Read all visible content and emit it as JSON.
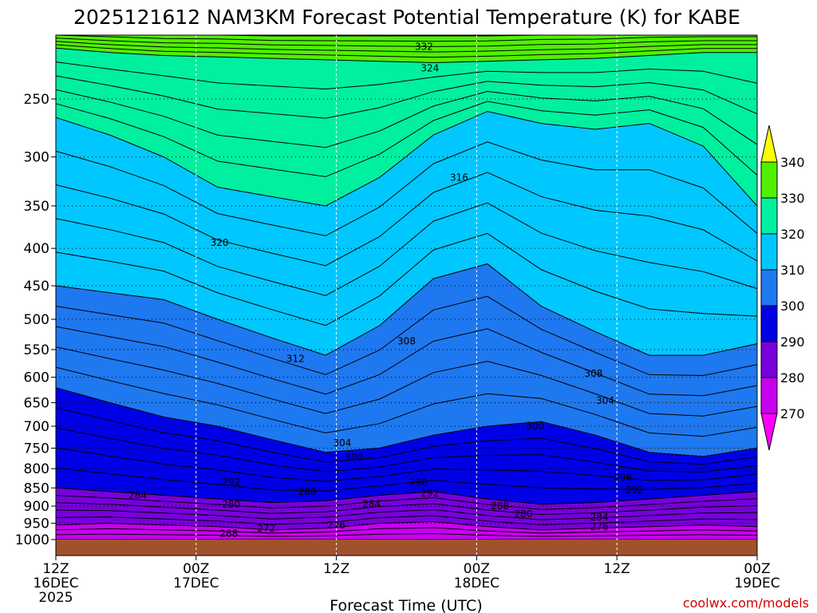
{
  "chart_data": {
    "type": "area",
    "title": "2025121612 NAM3KM Forecast Potential Temperature (K) for KABE",
    "xlabel": "Forecast Time (UTC)",
    "ylabel": "",
    "credit": "coolwx.com/models",
    "y_ticks": [
      250,
      300,
      350,
      400,
      450,
      500,
      550,
      600,
      650,
      700,
      750,
      800,
      850,
      900,
      950,
      1000
    ],
    "ylim": [
      1000,
      200
    ],
    "x_ticks": [
      {
        "hour": 0,
        "lines": [
          "12Z",
          "16DEC",
          "2025"
        ]
      },
      {
        "hour": 12,
        "lines": [
          "00Z",
          "17DEC"
        ]
      },
      {
        "hour": 24,
        "lines": [
          "12Z"
        ]
      },
      {
        "hour": 36,
        "lines": [
          "00Z",
          "18DEC"
        ]
      },
      {
        "hour": 48,
        "lines": [
          "12Z"
        ]
      },
      {
        "hour": 60,
        "lines": [
          "00Z",
          "19DEC"
        ]
      }
    ],
    "xlim": [
      0,
      60
    ],
    "colorbar": {
      "levels": [
        270,
        280,
        290,
        300,
        310,
        320,
        330,
        340
      ],
      "colors": [
        "#ff00ff",
        "#c800f0",
        "#7800dc",
        "#0000e6",
        "#1e78f0",
        "#00c8ff",
        "#00f0a0",
        "#50f000",
        "#ffff00"
      ]
    },
    "series": [
      {
        "theta": 270,
        "color": "#ff00ff",
        "pressure": [
          1000,
          1000,
          1000,
          1000,
          1000,
          1000,
          1000,
          1000,
          1000,
          1000,
          1000,
          1000,
          1000,
          1000
        ]
      },
      {
        "theta": 280,
        "color": "#c800f0",
        "pressure": [
          955,
          950,
          955,
          960,
          970,
          965,
          950,
          945,
          960,
          970,
          965,
          960,
          955,
          960
        ]
      },
      {
        "theta": 290,
        "color": "#7800dc",
        "pressure": [
          850,
          860,
          870,
          880,
          890,
          885,
          870,
          860,
          880,
          895,
          890,
          880,
          870,
          860
        ]
      },
      {
        "theta": 300,
        "color": "#0000e6",
        "pressure": [
          620,
          650,
          680,
          700,
          730,
          760,
          750,
          720,
          700,
          690,
          720,
          760,
          770,
          750
        ]
      },
      {
        "theta": 310,
        "color": "#1e78f0",
        "pressure": [
          450,
          460,
          470,
          500,
          530,
          560,
          510,
          440,
          420,
          480,
          520,
          560,
          560,
          540
        ]
      },
      {
        "theta": 320,
        "color": "#00c8ff",
        "pressure": [
          265,
          280,
          300,
          330,
          340,
          350,
          320,
          280,
          260,
          270,
          275,
          270,
          290,
          350
        ]
      },
      {
        "theta": 330,
        "color": "#00f0a0",
        "pressure": [
          213,
          216,
          218,
          219,
          220,
          221,
          222,
          223,
          222,
          221,
          220,
          218,
          216,
          216
        ]
      },
      {
        "theta": 340,
        "color": "#50f000",
        "pressure": [
          202,
          203,
          204,
          204,
          205,
          205,
          205,
          205,
          205,
          204,
          204,
          203,
          203,
          203
        ]
      }
    ],
    "contour_labels": [
      {
        "text": "332",
        "hour": 31.5,
        "p": 212
      },
      {
        "text": "324",
        "hour": 32.0,
        "p": 227
      },
      {
        "text": "316",
        "hour": 34.5,
        "p": 320
      },
      {
        "text": "320",
        "hour": 14.0,
        "p": 393
      },
      {
        "text": "308",
        "hour": 30.0,
        "p": 536
      },
      {
        "text": "312",
        "hour": 20.5,
        "p": 566
      },
      {
        "text": "308",
        "hour": 46.0,
        "p": 593
      },
      {
        "text": "304",
        "hour": 47.0,
        "p": 646
      },
      {
        "text": "300",
        "hour": 41.0,
        "p": 699
      },
      {
        "text": "304",
        "hour": 24.5,
        "p": 738
      },
      {
        "text": "300",
        "hour": 25.5,
        "p": 772
      },
      {
        "text": "296",
        "hour": 48.5,
        "p": 822
      },
      {
        "text": "292",
        "hour": 15.0,
        "p": 835
      },
      {
        "text": "296",
        "hour": 31.0,
        "p": 836
      },
      {
        "text": "292",
        "hour": 49.5,
        "p": 855
      },
      {
        "text": "292",
        "hour": 32.0,
        "p": 864
      },
      {
        "text": "288",
        "hour": 21.5,
        "p": 860
      },
      {
        "text": "284",
        "hour": 7.0,
        "p": 870
      },
      {
        "text": "284",
        "hour": 27.0,
        "p": 894
      },
      {
        "text": "280",
        "hour": 15.0,
        "p": 895
      },
      {
        "text": "288",
        "hour": 38.0,
        "p": 900
      },
      {
        "text": "280",
        "hour": 40.0,
        "p": 923
      },
      {
        "text": "284",
        "hour": 46.5,
        "p": 932
      },
      {
        "text": "276",
        "hour": 24.0,
        "p": 956
      },
      {
        "text": "276",
        "hour": 46.5,
        "p": 961
      },
      {
        "text": "272",
        "hour": 18.0,
        "p": 965
      },
      {
        "text": "268",
        "hour": 14.8,
        "p": 981
      }
    ]
  }
}
